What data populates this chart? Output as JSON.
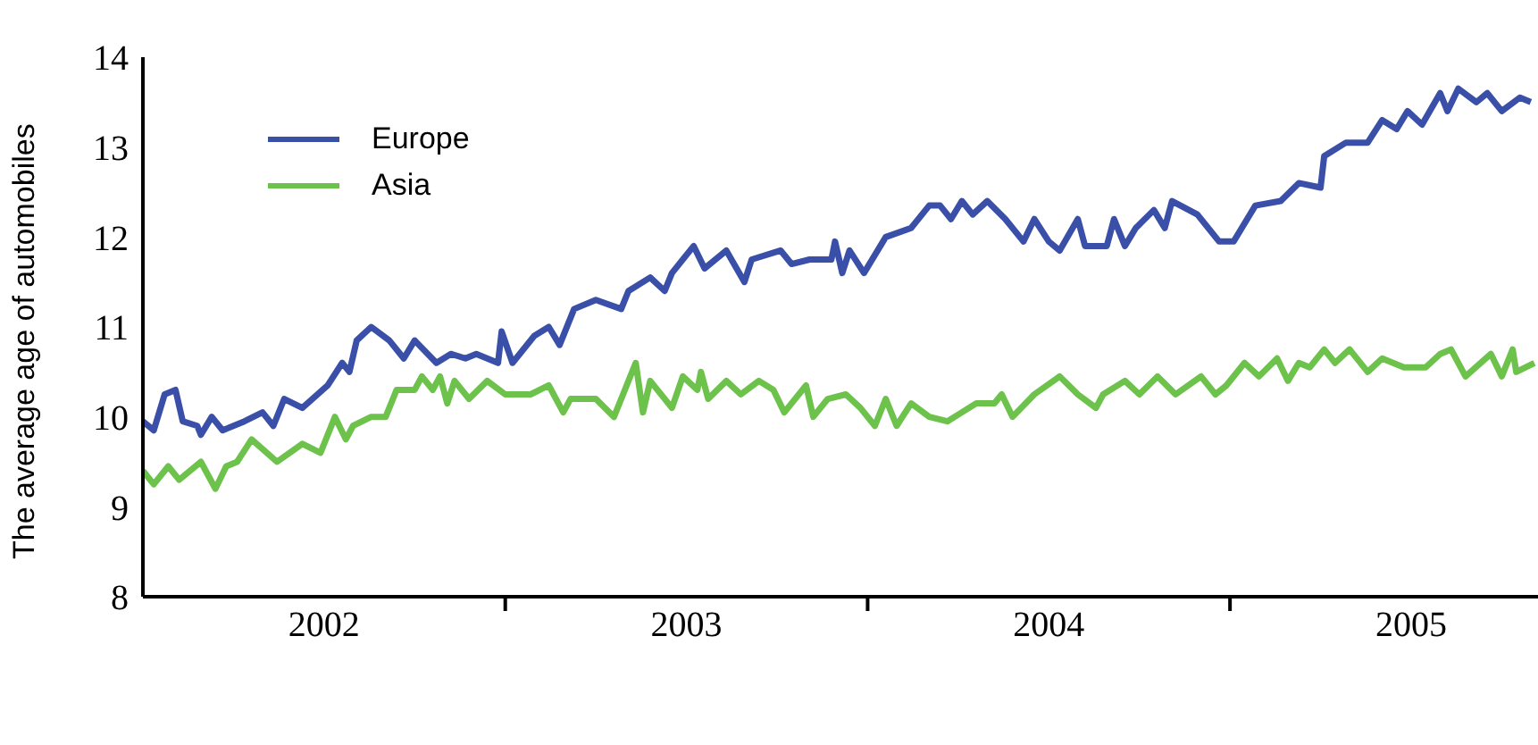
{
  "chart_data": {
    "type": "line",
    "ylabel": "The average age of automobiles",
    "xlim": [
      2002,
      2005.85
    ],
    "ylim": [
      8,
      14
    ],
    "yticks": [
      8,
      9,
      10,
      11,
      12,
      13,
      14
    ],
    "xticks": [
      {
        "value": 2002.5,
        "label": "2002"
      },
      {
        "value": 2003,
        "label": null
      },
      {
        "value": 2003.5,
        "label": "2003"
      },
      {
        "value": 2004,
        "label": null
      },
      {
        "value": 2004.5,
        "label": "2004"
      },
      {
        "value": 2005,
        "label": null
      },
      {
        "value": 2005.5,
        "label": "2005"
      }
    ],
    "grid": false,
    "legend": "top left",
    "marker": "none",
    "line_style": "solid",
    "series": [
      {
        "name": "Europe",
        "color": "#3a4fa8",
        "x": [
          2002.0,
          2002.03,
          2002.06,
          2002.09,
          2002.11,
          2002.15,
          2002.16,
          2002.19,
          2002.22,
          2002.28,
          2002.33,
          2002.36,
          2002.39,
          2002.44,
          2002.51,
          2002.55,
          2002.57,
          2002.59,
          2002.63,
          2002.68,
          2002.72,
          2002.75,
          2002.81,
          2002.85,
          2002.89,
          2002.92,
          2002.98,
          2002.99,
          2003.02,
          2003.08,
          2003.12,
          2003.15,
          2003.19,
          2003.25,
          2003.32,
          2003.34,
          2003.4,
          2003.44,
          2003.46,
          2003.52,
          2003.55,
          2003.61,
          2003.66,
          2003.68,
          2003.76,
          2003.79,
          2003.84,
          2003.9,
          2003.91,
          2003.93,
          2003.95,
          2003.99,
          2004.05,
          2004.12,
          2004.17,
          2004.2,
          2004.23,
          2004.26,
          2004.29,
          2004.33,
          2004.38,
          2004.43,
          2004.46,
          2004.5,
          2004.53,
          2004.58,
          2004.6,
          2004.66,
          2004.68,
          2004.71,
          2004.74,
          2004.79,
          2004.82,
          2004.84,
          2004.91,
          2004.97,
          2005.01,
          2005.07,
          2005.14,
          2005.19,
          2005.25,
          2005.26,
          2005.32,
          2005.38,
          2005.42,
          2005.46,
          2005.49,
          2005.53,
          2005.58,
          2005.6,
          2005.63,
          2005.68,
          2005.71,
          2005.75,
          2005.8,
          2005.83
        ],
        "values": [
          9.95,
          9.85,
          10.25,
          10.3,
          9.95,
          9.9,
          9.8,
          10.0,
          9.85,
          9.95,
          10.05,
          9.9,
          10.2,
          10.1,
          10.35,
          10.6,
          10.5,
          10.85,
          11.0,
          10.85,
          10.65,
          10.85,
          10.6,
          10.7,
          10.65,
          10.7,
          10.6,
          10.95,
          10.6,
          10.9,
          11.0,
          10.8,
          11.2,
          11.3,
          11.2,
          11.4,
          11.55,
          11.4,
          11.6,
          11.9,
          11.65,
          11.85,
          11.5,
          11.75,
          11.85,
          11.7,
          11.75,
          11.75,
          11.95,
          11.6,
          11.85,
          11.6,
          12.0,
          12.1,
          12.35,
          12.35,
          12.2,
          12.4,
          12.25,
          12.4,
          12.2,
          11.95,
          12.2,
          11.95,
          11.85,
          12.2,
          11.9,
          11.9,
          12.2,
          11.9,
          12.1,
          12.3,
          12.1,
          12.4,
          12.25,
          11.95,
          11.95,
          12.35,
          12.4,
          12.6,
          12.55,
          12.9,
          13.05,
          13.05,
          13.3,
          13.2,
          13.4,
          13.25,
          13.6,
          13.4,
          13.65,
          13.5,
          13.6,
          13.4,
          13.55,
          13.5
        ]
      },
      {
        "name": "Asia",
        "color": "#6cc24a",
        "x": [
          2002.0,
          2002.03,
          2002.07,
          2002.1,
          2002.16,
          2002.2,
          2002.23,
          2002.26,
          2002.3,
          2002.37,
          2002.44,
          2002.49,
          2002.53,
          2002.56,
          2002.58,
          2002.63,
          2002.67,
          2002.7,
          2002.75,
          2002.77,
          2002.8,
          2002.82,
          2002.84,
          2002.86,
          2002.9,
          2002.95,
          2003.0,
          2003.07,
          2003.12,
          2003.16,
          2003.18,
          2003.25,
          2003.3,
          2003.33,
          2003.36,
          2003.38,
          2003.4,
          2003.46,
          2003.49,
          2003.53,
          2003.54,
          2003.56,
          2003.61,
          2003.65,
          2003.7,
          2003.74,
          2003.77,
          2003.83,
          2003.85,
          2003.89,
          2003.94,
          2003.98,
          2004.02,
          2004.05,
          2004.08,
          2004.12,
          2004.17,
          2004.22,
          2004.26,
          2004.3,
          2004.35,
          2004.37,
          2004.4,
          2004.46,
          2004.53,
          2004.58,
          2004.63,
          2004.65,
          2004.71,
          2004.75,
          2004.8,
          2004.85,
          2004.92,
          2004.96,
          2004.99,
          2005.04,
          2005.08,
          2005.13,
          2005.16,
          2005.19,
          2005.22,
          2005.26,
          2005.29,
          2005.33,
          2005.38,
          2005.42,
          2005.48,
          2005.54,
          2005.58,
          2005.61,
          2005.65,
          2005.72,
          2005.75,
          2005.78,
          2005.79,
          2005.84
        ],
        "values": [
          9.4,
          9.25,
          9.45,
          9.3,
          9.5,
          9.2,
          9.45,
          9.5,
          9.75,
          9.5,
          9.7,
          9.6,
          10.0,
          9.75,
          9.9,
          10.0,
          10.0,
          10.3,
          10.3,
          10.45,
          10.3,
          10.45,
          10.15,
          10.4,
          10.2,
          10.4,
          10.25,
          10.25,
          10.35,
          10.05,
          10.2,
          10.2,
          10.0,
          10.3,
          10.6,
          10.05,
          10.4,
          10.1,
          10.45,
          10.3,
          10.5,
          10.2,
          10.4,
          10.25,
          10.4,
          10.3,
          10.05,
          10.35,
          10.0,
          10.2,
          10.25,
          10.1,
          9.9,
          10.2,
          9.9,
          10.15,
          10.0,
          9.95,
          10.05,
          10.15,
          10.15,
          10.25,
          10.0,
          10.25,
          10.45,
          10.25,
          10.1,
          10.25,
          10.4,
          10.25,
          10.45,
          10.25,
          10.45,
          10.25,
          10.35,
          10.6,
          10.45,
          10.65,
          10.4,
          10.6,
          10.55,
          10.75,
          10.6,
          10.75,
          10.5,
          10.65,
          10.55,
          10.55,
          10.7,
          10.75,
          10.45,
          10.7,
          10.45,
          10.75,
          10.5,
          10.6
        ]
      }
    ]
  }
}
